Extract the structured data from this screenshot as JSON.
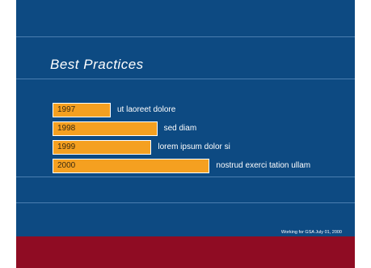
{
  "slide": {
    "title": "Best Practices",
    "credit": "Working for GSA  July 01, 2000"
  },
  "colors": {
    "background": "#0d4a82",
    "bar": "#f5a020",
    "footer": "#8f0c23",
    "rule": "#5a8bbb"
  },
  "chart_data": {
    "type": "bar",
    "orientation": "horizontal",
    "categories": [
      "1997",
      "1998",
      "1999",
      "2000"
    ],
    "values": [
      1,
      1.8,
      1.7,
      2.7
    ],
    "value_labels": [
      "ut laoreet dolore",
      "sed diam",
      "lorem ipsum dolor si",
      "nostrud exerci tation ullam"
    ],
    "title": "",
    "xlabel": "",
    "ylabel": "",
    "xlim": [
      0,
      2.7
    ],
    "grid": false,
    "legend": "none"
  }
}
